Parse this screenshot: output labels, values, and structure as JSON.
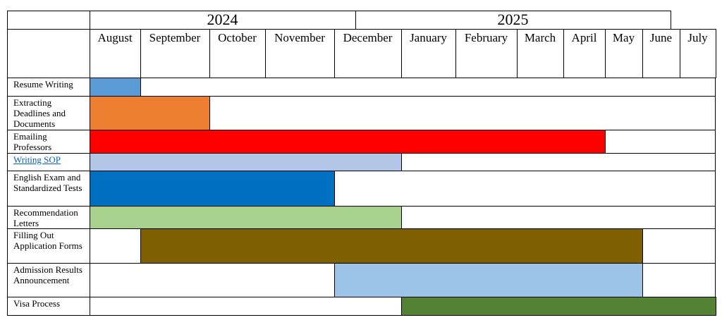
{
  "header": {
    "years": [
      "2024",
      "2025"
    ],
    "months": [
      "August",
      "September",
      "October",
      "November",
      "December",
      "January",
      "February",
      "March",
      "April",
      "May",
      "June",
      "July"
    ]
  },
  "tasks": [
    {
      "label": "Resume Writing",
      "start": "August",
      "end": "August",
      "color": "#5b9bd5"
    },
    {
      "label": "Extracting Deadlines and Documents",
      "start": "August",
      "end": "September",
      "color": "#ed7d31"
    },
    {
      "label": "Emailing Professors",
      "start": "August",
      "end": "April",
      "color": "#ff0000"
    },
    {
      "label": "Writing SOP",
      "start": "August",
      "end": "December",
      "color": "#b4c6e7",
      "link": true
    },
    {
      "label": "English Exam and Standardized Tests",
      "start": "August",
      "end": "November",
      "color": "#0070c0"
    },
    {
      "label": "Recommendation Letters",
      "start": "August",
      "end": "December",
      "color": "#a9d18e"
    },
    {
      "label": "Filling Out Application Forms",
      "start": "September",
      "end": "May",
      "color": "#7f6000"
    },
    {
      "label": "Admission Results Announcement",
      "start": "December",
      "end": "May",
      "color": "#9dc3e6"
    },
    {
      "label": "Visa Process",
      "start": "January",
      "end": "July",
      "color": "#548235"
    }
  ]
}
